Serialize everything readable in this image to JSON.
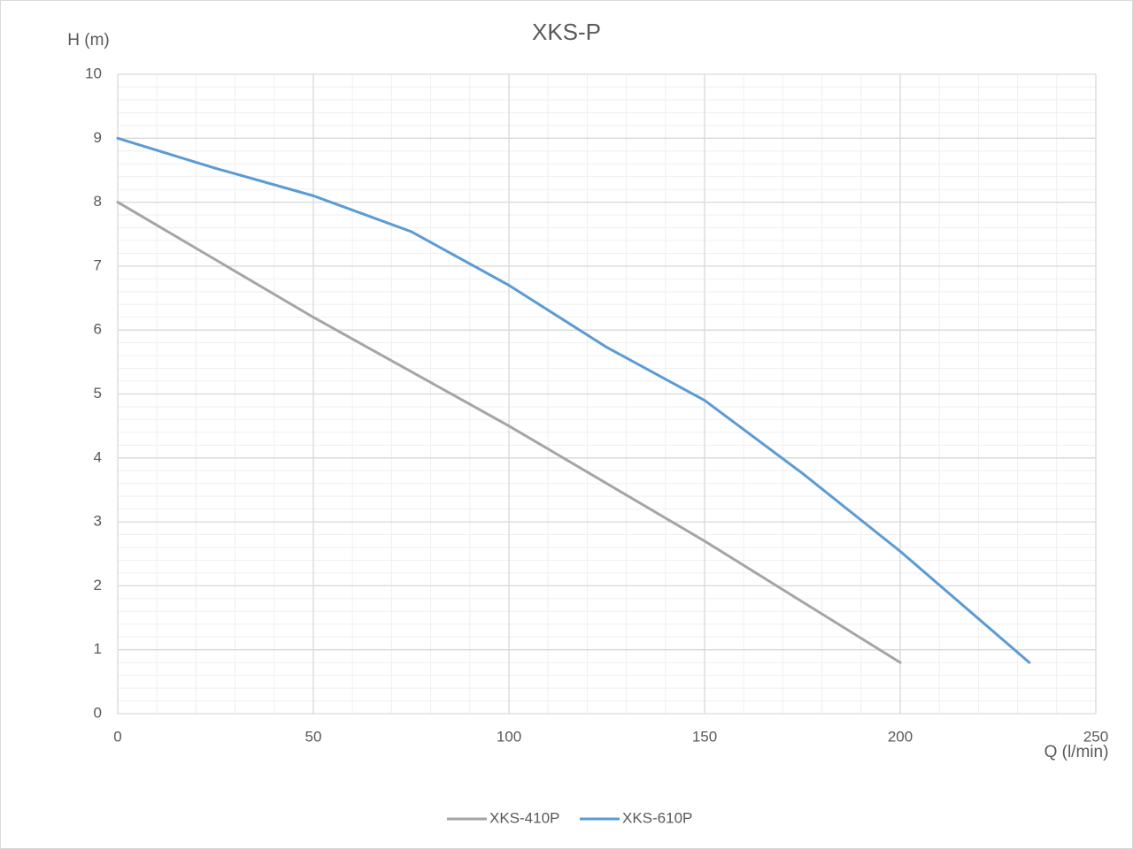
{
  "chart_data": {
    "type": "line",
    "title": "XKS-P",
    "x_label": "Q (l/min)",
    "y_label": "H (m)",
    "xlim": [
      0,
      250
    ],
    "xticks": [
      0,
      50,
      100,
      150,
      200,
      250
    ],
    "ylim": [
      0,
      10
    ],
    "yticks": [
      0,
      1,
      2,
      3,
      4,
      5,
      6,
      7,
      8,
      9,
      10
    ],
    "grid": true,
    "minor_grid": {
      "x": 10,
      "y": 0.2
    },
    "legend": "bottom",
    "series": [
      {
        "name": "XKS-410P",
        "color": "#a5a5a5",
        "x": [
          0,
          50,
          100,
          150,
          200
        ],
        "values": [
          8,
          6.2,
          4.5,
          2.7,
          0.8
        ]
      },
      {
        "name": "XKS-610P",
        "color": "#5b9bd5",
        "x": [
          0,
          25,
          50,
          75,
          100,
          125,
          150,
          175,
          200,
          233
        ],
        "values": [
          9,
          8.53,
          8.1,
          7.54,
          6.7,
          5.73,
          4.9,
          3.76,
          2.54,
          0.8
        ]
      }
    ]
  }
}
